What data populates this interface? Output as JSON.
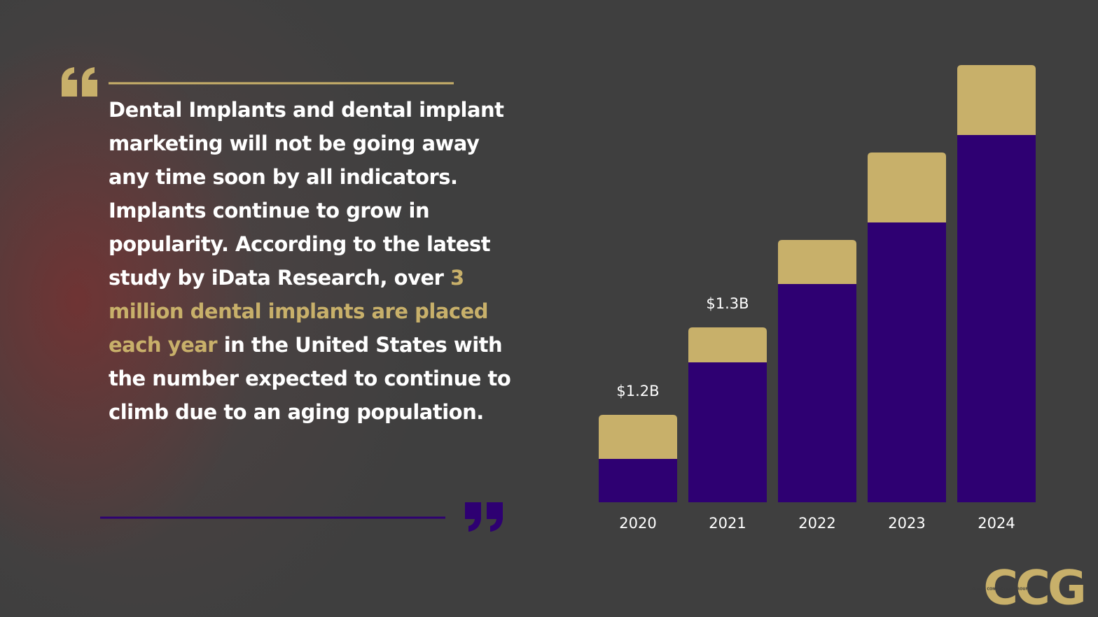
{
  "quote": {
    "segments": [
      {
        "text": "Dental Implants and dental implant marketing will not be going away any time soon by all indicators. Implants continue to grow in popularity. According to the latest study by iData Research, over ",
        "highlight": false
      },
      {
        "text": "3 million dental implants are placed each year",
        "highlight": true
      },
      {
        "text": " in the United States with the number expected to continue to climb due to an aging population.",
        "highlight": false
      }
    ]
  },
  "chart_data": {
    "type": "stacked_bar",
    "categories": [
      "2020",
      "2021",
      "2022",
      "2023",
      "2024"
    ],
    "series": [
      {
        "color": "#2e0072",
        "values": [
          62,
          200,
          312,
          400,
          525
        ]
      },
      {
        "color": "#c8b06a",
        "values": [
          63,
          50,
          63,
          100,
          100
        ]
      }
    ],
    "annotations": [
      {
        "category": "2020",
        "text": "$1.2B"
      },
      {
        "category": "2021",
        "text": "$1.3B"
      }
    ]
  },
  "logo": {
    "mark": "CCG",
    "name": "CLIENT CONNECTION GROUP"
  }
}
